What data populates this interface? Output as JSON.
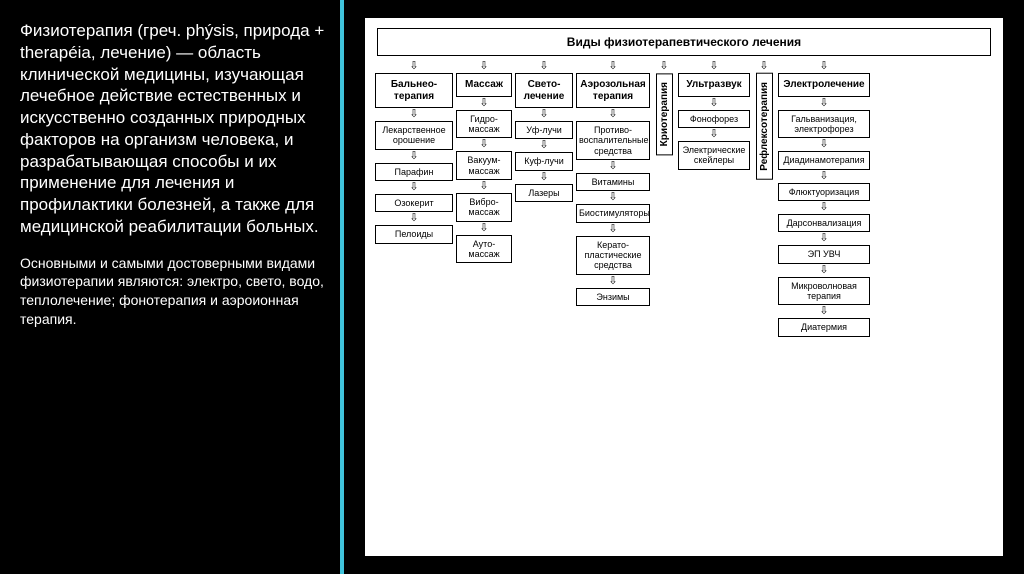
{
  "text": {
    "paragraph1": "Физиотерапия (греч. phýsis, природа + therapéia, лечение) — область клинической медицины, изучающая лечебное действие естественных и искусственно созданных природных факторов на организм человека, и разрабатывающая способы и их применение для лечения и профилактики болезней, а также для медицинской реабилитации больных.",
    "paragraph2": "Основными и самыми достоверными видами физиотерапии являются: электро, свето, водо, теплолечение; фонотерапия и аэроионная терапия."
  },
  "chart": {
    "title": "Виды физиотерапевтического лечения",
    "columns": [
      {
        "type": "normal",
        "width_class": "c0",
        "head": "Бальнео-\nтерапия",
        "items": [
          "Лекарственное орошение",
          "Парафин",
          "Озокерит",
          "Пелоиды"
        ]
      },
      {
        "type": "normal",
        "width_class": "c1",
        "head": "Массаж",
        "items": [
          "Гидро-\nмассаж",
          "Вакуум-\nмассаж",
          "Вибро-\nмассаж",
          "Ауто-\nмассаж"
        ]
      },
      {
        "type": "normal",
        "width_class": "c2",
        "head": "Свето-\nлечение",
        "items": [
          "Уф-лучи",
          "Куф-лучи",
          "Лазеры"
        ]
      },
      {
        "type": "normal",
        "width_class": "c3",
        "head": "Аэрозольная терапия",
        "items": [
          "Противо-\nвоспалительные средства",
          "Витамины",
          "Биостимуляторы",
          "Керато-\nпластические средства",
          "Энзимы"
        ]
      },
      {
        "type": "vertical",
        "width_class": "c4",
        "label": "Криотерапия"
      },
      {
        "type": "normal",
        "width_class": "c5",
        "head": "Ультразвук",
        "items": [
          "Фонофорез",
          "Электрические скейлеры"
        ]
      },
      {
        "type": "vertical",
        "width_class": "c6",
        "label": "Рефлексотерапия"
      },
      {
        "type": "normal",
        "width_class": "c7",
        "head": "Электролечение",
        "items": [
          "Гальванизация, электрофорез",
          "Диадинамотерапия",
          "Флюктуоризация",
          "Дарсонвализация",
          "ЭП УВЧ",
          "Микроволновая терапия",
          "Диатермия"
        ]
      }
    ]
  },
  "style": {
    "background": "#000000",
    "accent": "#40c4dc",
    "chart_bg": "#ffffff",
    "border_color": "#000000",
    "text_color_left": "#ffffff"
  }
}
